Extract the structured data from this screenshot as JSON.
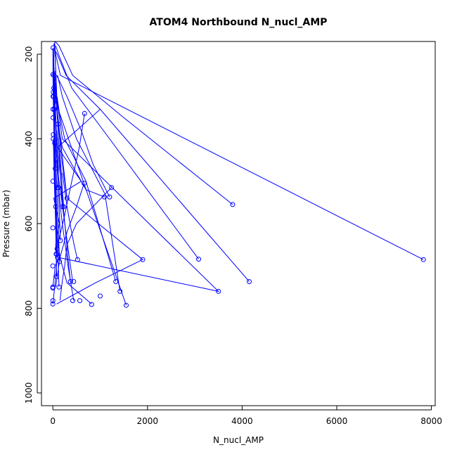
{
  "chart_data": {
    "type": "line",
    "title": "ATOM4 Northbound N_nucl_AMP",
    "xlabel": "N_nucl_AMP",
    "ylabel": "Pressure (mbar)",
    "xlim": [
      -240,
      8080
    ],
    "ylim": [
      170,
      1030
    ],
    "y_reversed": true,
    "grid": false,
    "legend": "none",
    "line_color": "#0000ff",
    "x_ticks": [
      0,
      2000,
      4000,
      6000,
      8000
    ],
    "y_ticks": [
      200,
      400,
      600,
      800,
      1000
    ],
    "series": [
      {
        "x": [
          0,
          40,
          80,
          60,
          140,
          20,
          600,
          100,
          1000
        ],
        "y": [
          790,
          750,
          700,
          650,
          600,
          540,
          500,
          420,
          330
        ]
      },
      {
        "x": [
          80,
          900,
          1900,
          300,
          60
        ],
        "y": [
          790,
          740,
          685,
          540,
          300
        ]
      },
      {
        "x": [
          0,
          50,
          120,
          3500,
          200,
          80,
          40
        ],
        "y": [
          750,
          700,
          680,
          760,
          400,
          300,
          170
        ]
      },
      {
        "x": [
          820,
          300,
          150,
          60,
          30,
          10
        ],
        "y": [
          790,
          740,
          680,
          600,
          500,
          400
        ]
      },
      {
        "x": [
          7830,
          160,
          60,
          30
        ],
        "y": [
          685,
          250,
          200,
          175
        ]
      },
      {
        "x": [
          1550,
          5,
          3,
          2
        ],
        "y": [
          793,
          295,
          250,
          185
        ]
      },
      {
        "x": [
          4150,
          1000,
          280,
          90,
          40,
          20
        ],
        "y": [
          737,
          330,
          250,
          200,
          190,
          175
        ]
      },
      {
        "x": [
          3800,
          1500,
          420,
          130,
          50
        ],
        "y": [
          555,
          350,
          250,
          180,
          170
        ]
      },
      {
        "x": [
          3080,
          1200,
          400,
          120,
          60
        ],
        "y": [
          684,
          400,
          280,
          200,
          180
        ]
      },
      {
        "x": [
          1420,
          1100,
          500,
          200,
          100
        ],
        "y": [
          760,
          530,
          400,
          300,
          250
        ]
      },
      {
        "x": [
          1330,
          700,
          250,
          140,
          90
        ],
        "y": [
          737,
          500,
          400,
          340,
          300
        ]
      },
      {
        "x": [
          1200,
          850,
          600,
          300,
          80
        ],
        "y": [
          537,
          460,
          380,
          300,
          250
        ]
      },
      {
        "x": [
          1240,
          500,
          300,
          250,
          200,
          150
        ],
        "y": [
          515,
          600,
          650,
          700,
          736,
          782
        ]
      },
      {
        "x": [
          1090,
          700,
          500,
          200,
          100
        ],
        "y": [
          537,
          520,
          480,
          420,
          360
        ]
      },
      {
        "x": [
          670,
          560,
          400,
          250,
          100
        ],
        "y": [
          340,
          420,
          500,
          580,
          650
        ]
      },
      {
        "x": [
          660,
          500,
          300,
          150,
          100,
          60
        ],
        "y": [
          505,
          560,
          620,
          680,
          720,
          750
        ]
      },
      {
        "x": [
          520,
          450,
          380,
          300,
          250,
          200
        ],
        "y": [
          685,
          650,
          610,
          560,
          520,
          480
        ]
      },
      {
        "x": [
          440,
          380,
          320,
          260,
          200,
          150,
          110,
          80
        ],
        "y": [
          782,
          740,
          700,
          650,
          600,
          550,
          500,
          450
        ]
      },
      {
        "x": [
          420,
          360,
          300,
          240,
          180,
          120,
          80,
          50
        ],
        "y": [
          737,
          690,
          640,
          590,
          540,
          490,
          440,
          390
        ]
      },
      {
        "x": [
          370,
          320,
          270,
          220,
          170,
          120,
          80
        ],
        "y": [
          737,
          680,
          620,
          560,
          500,
          440,
          380
        ]
      },
      {
        "x": [
          300,
          250,
          200,
          160,
          130,
          100,
          70
        ],
        "y": [
          540,
          500,
          460,
          420,
          380,
          340,
          300
        ]
      },
      {
        "x": [
          230,
          200,
          180,
          150,
          120,
          100,
          80,
          60,
          40
        ],
        "y": [
          560,
          520,
          480,
          440,
          400,
          360,
          320,
          280,
          240
        ]
      },
      {
        "x": [
          200,
          170,
          140,
          110,
          90,
          70,
          50,
          30
        ],
        "y": [
          560,
          500,
          440,
          380,
          320,
          260,
          210,
          180
        ]
      },
      {
        "x": [
          160,
          140,
          120,
          100,
          80,
          60,
          40,
          20
        ],
        "y": [
          640,
          580,
          520,
          460,
          400,
          340,
          280,
          220
        ]
      },
      {
        "x": [
          140,
          120,
          100,
          80,
          60,
          40,
          20,
          10
        ],
        "y": [
          690,
          620,
          560,
          500,
          440,
          380,
          320,
          260
        ]
      },
      {
        "x": [
          130,
          110,
          90,
          70,
          50,
          30,
          20,
          10
        ],
        "y": [
          750,
          680,
          610,
          540,
          470,
          400,
          330,
          260
        ]
      },
      {
        "x": [
          110,
          95,
          80,
          65,
          50,
          35,
          20,
          10
        ],
        "y": [
          365,
          340,
          320,
          300,
          280,
          260,
          240,
          220
        ]
      },
      {
        "x": [
          100,
          120,
          90,
          70,
          50,
          30,
          20
        ],
        "y": [
          515,
          470,
          430,
          390,
          350,
          310,
          270
        ]
      },
      {
        "x": [
          90,
          80,
          70,
          60,
          50,
          40,
          30,
          20
        ],
        "y": [
          680,
          630,
          580,
          530,
          480,
          430,
          380,
          330
        ]
      },
      {
        "x": [
          80,
          70,
          60,
          50,
          40,
          30,
          20,
          10
        ],
        "y": [
          725,
          660,
          600,
          540,
          480,
          420,
          360,
          300
        ]
      },
      {
        "x": [
          70,
          60,
          50,
          40,
          30,
          20,
          10,
          5
        ],
        "y": [
          672,
          610,
          550,
          490,
          430,
          370,
          310,
          250
        ]
      },
      {
        "x": [
          60,
          50,
          40,
          30,
          20,
          15,
          10
        ],
        "y": [
          560,
          500,
          440,
          380,
          320,
          260,
          200
        ]
      },
      {
        "x": [
          50,
          45,
          40,
          35,
          30,
          25,
          20,
          15
        ],
        "y": [
          470,
          420,
          370,
          330,
          290,
          250,
          220,
          190
        ]
      },
      {
        "x": [
          40,
          35,
          30,
          25,
          20,
          15,
          10
        ],
        "y": [
          410,
          370,
          330,
          290,
          250,
          210,
          185
        ]
      },
      {
        "x": [
          30,
          28,
          25,
          20,
          15,
          10,
          8
        ],
        "y": [
          330,
          300,
          270,
          240,
          220,
          200,
          185
        ]
      },
      {
        "x": [
          20,
          18,
          15,
          12,
          10,
          8
        ],
        "y": [
          280,
          260,
          240,
          220,
          200,
          185
        ]
      }
    ],
    "points": {
      "x": [
        7830,
        4150,
        3800,
        3500,
        3080,
        1900,
        1550,
        1420,
        1330,
        1240,
        1200,
        1090,
        1000,
        820,
        670,
        660,
        570,
        520,
        440,
        420,
        370,
        300,
        230,
        200,
        160,
        140,
        130,
        120,
        110,
        100,
        100,
        90,
        80,
        80,
        70,
        60,
        50,
        40,
        30,
        25,
        20,
        15,
        10,
        10,
        8,
        5,
        5,
        5,
        3,
        2,
        2,
        0,
        0,
        0,
        0,
        0,
        0
      ],
      "y": [
        685,
        737,
        555,
        760,
        684,
        685,
        793,
        760,
        737,
        515,
        537,
        537,
        771,
        791,
        340,
        505,
        782,
        685,
        737,
        782,
        737,
        540,
        560,
        560,
        640,
        690,
        750,
        515,
        365,
        515,
        680,
        660,
        725,
        672,
        672,
        560,
        470,
        410,
        330,
        250,
        280,
        300,
        290,
        390,
        400,
        185,
        300,
        350,
        330,
        248,
        500,
        700,
        752,
        750,
        782,
        790,
        610
      ]
    }
  }
}
